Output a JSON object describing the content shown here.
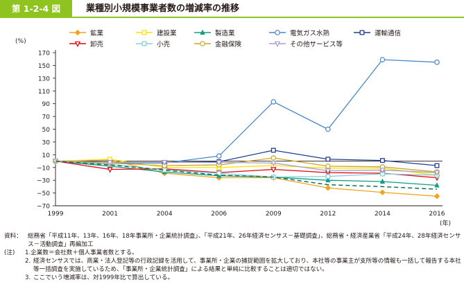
{
  "figure": {
    "number": "第 1-2-4 図",
    "title": "業種別小規模事業者数の増減率の推移",
    "accent_color": "#8fc31f"
  },
  "chart_data": {
    "type": "line",
    "ylabel": "(%)",
    "xlabel": "(年)",
    "x": [
      "1999",
      "2001",
      "2004",
      "2006",
      "2009",
      "2012",
      "2014",
      "2016"
    ],
    "ylim": [
      -70,
      170
    ],
    "yticks": [
      170,
      150,
      130,
      110,
      90,
      70,
      50,
      30,
      10,
      -10,
      -30,
      -50,
      -70
    ],
    "grid": false,
    "legend_position": "top",
    "series": [
      {
        "name": "鉱業",
        "color": "#f0a51e",
        "marker": "diamond",
        "dashed": false,
        "values": [
          0,
          2,
          -19,
          -26,
          -26,
          -42,
          -49,
          -55
        ]
      },
      {
        "name": "建設業",
        "color": "#ffe100",
        "marker": "square",
        "dashed": false,
        "values": [
          0,
          3,
          -10,
          -10,
          -7,
          -11,
          -11,
          -22
        ]
      },
      {
        "name": "製造業",
        "color": "#109e82",
        "marker": "triangle",
        "dashed": false,
        "values": [
          0,
          -8,
          -17,
          -23,
          -25,
          -30,
          -32,
          -38
        ]
      },
      {
        "name": "電気ガス水熱",
        "color": "#4a86c8",
        "marker": "circle",
        "dashed": false,
        "values": [
          0,
          -3,
          -3,
          8,
          93,
          50,
          159,
          155
        ]
      },
      {
        "name": "運輸通信",
        "color": "#1d3e8e",
        "marker": "square",
        "dashed": false,
        "values": [
          0,
          -2,
          -2,
          -1,
          17,
          3,
          1,
          -7
        ]
      },
      {
        "name": "卸売",
        "color": "#e60012",
        "marker": "triangle-down",
        "dashed": false,
        "values": [
          0,
          -13,
          -12,
          -18,
          -13,
          -18,
          -19,
          -26
        ]
      },
      {
        "name": "小売",
        "color": "#86cfd8",
        "marker": "square",
        "dashed": false,
        "values": [
          0,
          -5,
          -14,
          -19,
          -25,
          -24,
          -20,
          -22
        ]
      },
      {
        "name": "金融保険",
        "color": "#c9a727",
        "marker": "circle",
        "dashed": false,
        "values": [
          0,
          -3,
          -7,
          -6,
          5,
          -8,
          -9,
          -17
        ]
      },
      {
        "name": "その他サービス等",
        "color": "#a39ed0",
        "marker": "triangle-down",
        "dashed": false,
        "values": [
          0,
          -2,
          -2,
          -2,
          -3,
          -15,
          -14,
          -18
        ]
      },
      {
        "name": "",
        "color": "#0f6e5c",
        "marker": "none",
        "dashed": true,
        "values": [
          0,
          -6,
          -14,
          -22,
          -25,
          -37,
          -40,
          -44
        ]
      }
    ]
  },
  "notes": {
    "source_label": "資料：",
    "source_text": "総務省「平成11年、13年、16年、18年事業所・企業統計調査」、「平成21年、26年経済センサス－基礎調査」、総務省・経済産業省「平成24年、28年経済センサス－活動調査」再編加工",
    "note_label": "(注)",
    "items": [
      {
        "num": "1.",
        "text": "企業数＝会社数＋個人事業者数とする。"
      },
      {
        "num": "2.",
        "text": "経済センサスでは、商業・法人登記等の行政記録を活用して、事業所・企業の捕捉範囲を拡大しており、本社等の事業主が支所等の情報も一括して報告する本社等一括調査を実施しているため、「事業所・企業統計調査」による結果と単純に比較することは適切ではない。"
      },
      {
        "num": "3.",
        "text": "ここでいう増減率は、対1999年比で算出している。"
      }
    ]
  }
}
